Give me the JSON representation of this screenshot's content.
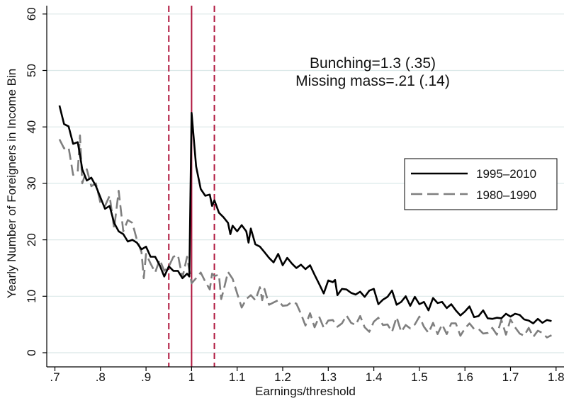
{
  "chart_data": {
    "type": "line",
    "title": "",
    "xlabel": "Earnings/threshold",
    "ylabel": "Yearly Number of Foreigners in Income Bin",
    "xlim": [
      0.7,
      1.8
    ],
    "ylim": [
      0,
      60
    ],
    "x_ticks": [
      0.7,
      0.8,
      0.9,
      1.0,
      1.1,
      1.2,
      1.3,
      1.4,
      1.5,
      1.6,
      1.7,
      1.8
    ],
    "x_tick_labels": [
      ".7",
      ".8",
      ".9",
      "1",
      "1.1",
      "1.2",
      "1.3",
      "1.4",
      "1.5",
      "1.6",
      "1.7",
      "1.8"
    ],
    "y_ticks": [
      0,
      10,
      20,
      30,
      40,
      50,
      60
    ],
    "y_tick_labels": [
      "0",
      "10",
      "20",
      "30",
      "40",
      "50",
      "60"
    ],
    "grid": "horizontal",
    "annotations": [
      "Bunching=1.3 (.35)",
      "Missing mass=.21 (.14)"
    ],
    "vertical_lines": [
      {
        "x": 0.95,
        "style": "dashed",
        "color": "#b0173f"
      },
      {
        "x": 1.0,
        "style": "solid",
        "color": "#b0173f"
      },
      {
        "x": 1.05,
        "style": "dashed",
        "color": "#b0173f"
      }
    ],
    "legend_position": "right",
    "series": [
      {
        "name": "1995–2010",
        "color": "#000000",
        "style": "solid",
        "points": [
          [
            0.71,
            43.8
          ],
          [
            0.72,
            40.5
          ],
          [
            0.73,
            40.1
          ],
          [
            0.74,
            37
          ],
          [
            0.75,
            37.3
          ],
          [
            0.755,
            35
          ],
          [
            0.76,
            32.5
          ],
          [
            0.77,
            30.5
          ],
          [
            0.78,
            31
          ],
          [
            0.79,
            29.5
          ],
          [
            0.8,
            27.5
          ],
          [
            0.81,
            25.5
          ],
          [
            0.82,
            26
          ],
          [
            0.83,
            23
          ],
          [
            0.84,
            21.5
          ],
          [
            0.85,
            21
          ],
          [
            0.86,
            19.7
          ],
          [
            0.87,
            20
          ],
          [
            0.88,
            19.5
          ],
          [
            0.89,
            18.3
          ],
          [
            0.9,
            18.8
          ],
          [
            0.91,
            17
          ],
          [
            0.92,
            17
          ],
          [
            0.93,
            15.5
          ],
          [
            0.94,
            13.5
          ],
          [
            0.95,
            15.3
          ],
          [
            0.96,
            14.5
          ],
          [
            0.97,
            14.5
          ],
          [
            0.98,
            13.2
          ],
          [
            0.99,
            14
          ],
          [
            0.995,
            13.5
          ],
          [
            1.0,
            42.5
          ],
          [
            1.01,
            33
          ],
          [
            1.02,
            29
          ],
          [
            1.03,
            27.8
          ],
          [
            1.04,
            28
          ],
          [
            1.045,
            26
          ],
          [
            1.05,
            27
          ],
          [
            1.06,
            24.8
          ],
          [
            1.07,
            24
          ],
          [
            1.08,
            23
          ],
          [
            1.085,
            21
          ],
          [
            1.09,
            22.5
          ],
          [
            1.1,
            21.5
          ],
          [
            1.11,
            22.6
          ],
          [
            1.12,
            21.5
          ],
          [
            1.125,
            19.5
          ],
          [
            1.13,
            22
          ],
          [
            1.14,
            19.2
          ],
          [
            1.15,
            18.8
          ],
          [
            1.16,
            17.8
          ],
          [
            1.17,
            16.8
          ],
          [
            1.18,
            16
          ],
          [
            1.19,
            17.5
          ],
          [
            1.2,
            15.5
          ],
          [
            1.21,
            16.8
          ],
          [
            1.22,
            15.8
          ],
          [
            1.23,
            15
          ],
          [
            1.24,
            15.6
          ],
          [
            1.25,
            14.8
          ],
          [
            1.26,
            15.5
          ],
          [
            1.27,
            13.8
          ],
          [
            1.28,
            12.2
          ],
          [
            1.29,
            10.5
          ],
          [
            1.3,
            12.8
          ],
          [
            1.31,
            12.5
          ],
          [
            1.315,
            12.9
          ],
          [
            1.32,
            10.2
          ],
          [
            1.33,
            11.3
          ],
          [
            1.34,
            11.2
          ],
          [
            1.35,
            10.6
          ],
          [
            1.36,
            10.3
          ],
          [
            1.37,
            10.8
          ],
          [
            1.38,
            9.9
          ],
          [
            1.39,
            11
          ],
          [
            1.4,
            11.3
          ],
          [
            1.41,
            8.6
          ],
          [
            1.42,
            9.4
          ],
          [
            1.43,
            9.9
          ],
          [
            1.44,
            11
          ],
          [
            1.45,
            8.5
          ],
          [
            1.46,
            9
          ],
          [
            1.47,
            10
          ],
          [
            1.48,
            8.3
          ],
          [
            1.49,
            9.9
          ],
          [
            1.5,
            8.6
          ],
          [
            1.51,
            9
          ],
          [
            1.52,
            7.5
          ],
          [
            1.53,
            9.7
          ],
          [
            1.54,
            8.8
          ],
          [
            1.55,
            9
          ],
          [
            1.56,
            7.9
          ],
          [
            1.57,
            8.6
          ],
          [
            1.58,
            7.5
          ],
          [
            1.59,
            6.6
          ],
          [
            1.6,
            7.3
          ],
          [
            1.61,
            8.2
          ],
          [
            1.62,
            6.3
          ],
          [
            1.63,
            6.5
          ],
          [
            1.64,
            7.5
          ],
          [
            1.65,
            6.1
          ],
          [
            1.66,
            6
          ],
          [
            1.67,
            6.2
          ],
          [
            1.68,
            6.1
          ],
          [
            1.69,
            6.9
          ],
          [
            1.7,
            6.4
          ],
          [
            1.71,
            6.9
          ],
          [
            1.72,
            6.7
          ],
          [
            1.73,
            5.9
          ],
          [
            1.74,
            5.7
          ],
          [
            1.75,
            5.2
          ],
          [
            1.76,
            6
          ],
          [
            1.77,
            5.3
          ],
          [
            1.78,
            5.8
          ],
          [
            1.79,
            5.6
          ]
        ]
      },
      {
        "name": "1980–1990",
        "color": "#7f7f7f",
        "style": "dashed",
        "points": [
          [
            0.71,
            37.8
          ],
          [
            0.72,
            36.2
          ],
          [
            0.73,
            36.4
          ],
          [
            0.74,
            31.5
          ],
          [
            0.75,
            32
          ],
          [
            0.755,
            38.5
          ],
          [
            0.76,
            30
          ],
          [
            0.77,
            32.5
          ],
          [
            0.78,
            29.5
          ],
          [
            0.79,
            30
          ],
          [
            0.8,
            26.5
          ],
          [
            0.81,
            26
          ],
          [
            0.82,
            27.8
          ],
          [
            0.83,
            22
          ],
          [
            0.84,
            28.7
          ],
          [
            0.85,
            21.5
          ],
          [
            0.86,
            23.5
          ],
          [
            0.87,
            23
          ],
          [
            0.88,
            20
          ],
          [
            0.89,
            17.8
          ],
          [
            0.895,
            13.2
          ],
          [
            0.9,
            17.5
          ],
          [
            0.91,
            15.8
          ],
          [
            0.92,
            14.2
          ],
          [
            0.93,
            16.5
          ],
          [
            0.94,
            14.5
          ],
          [
            0.95,
            15.3
          ],
          [
            0.96,
            17
          ],
          [
            0.97,
            17.3
          ],
          [
            0.98,
            13.3
          ],
          [
            0.99,
            17
          ],
          [
            1.0,
            12.3
          ],
          [
            1.01,
            13.2
          ],
          [
            1.02,
            14.2
          ],
          [
            1.03,
            12.6
          ],
          [
            1.04,
            11.2
          ],
          [
            1.045,
            14
          ],
          [
            1.05,
            13.6
          ],
          [
            1.06,
            13.8
          ],
          [
            1.065,
            9.5
          ],
          [
            1.07,
            11
          ],
          [
            1.08,
            14.3
          ],
          [
            1.09,
            13.1
          ],
          [
            1.1,
            10.5
          ],
          [
            1.11,
            8
          ],
          [
            1.12,
            9.5
          ],
          [
            1.13,
            10.2
          ],
          [
            1.14,
            9.3
          ],
          [
            1.15,
            11.6
          ],
          [
            1.155,
            9.3
          ],
          [
            1.16,
            11.3
          ],
          [
            1.17,
            8.5
          ],
          [
            1.18,
            8.9
          ],
          [
            1.19,
            9.3
          ],
          [
            1.2,
            8.3
          ],
          [
            1.21,
            8.4
          ],
          [
            1.22,
            9
          ],
          [
            1.23,
            8.7
          ],
          [
            1.24,
            6.9
          ],
          [
            1.25,
            4.8
          ],
          [
            1.26,
            7
          ],
          [
            1.27,
            4.5
          ],
          [
            1.28,
            6.4
          ],
          [
            1.29,
            4.4
          ],
          [
            1.3,
            5.7
          ],
          [
            1.31,
            5.8
          ],
          [
            1.32,
            4.6
          ],
          [
            1.33,
            5.2
          ],
          [
            1.34,
            6.6
          ],
          [
            1.35,
            5.3
          ],
          [
            1.36,
            4.9
          ],
          [
            1.37,
            6.5
          ],
          [
            1.38,
            4.5
          ],
          [
            1.39,
            3.7
          ],
          [
            1.4,
            5.5
          ],
          [
            1.41,
            6.2
          ],
          [
            1.42,
            4.9
          ],
          [
            1.43,
            5
          ],
          [
            1.44,
            3.7
          ],
          [
            1.45,
            6.3
          ],
          [
            1.46,
            3.7
          ],
          [
            1.47,
            4.9
          ],
          [
            1.48,
            4.3
          ],
          [
            1.49,
            5
          ],
          [
            1.5,
            6.4
          ],
          [
            1.51,
            4.6
          ],
          [
            1.52,
            3.5
          ],
          [
            1.53,
            5.3
          ],
          [
            1.54,
            3.3
          ],
          [
            1.55,
            5
          ],
          [
            1.56,
            3.3
          ],
          [
            1.57,
            5.2
          ],
          [
            1.58,
            5.2
          ],
          [
            1.59,
            3
          ],
          [
            1.6,
            4.3
          ],
          [
            1.61,
            5.2
          ],
          [
            1.62,
            4.2
          ],
          [
            1.63,
            4.2
          ],
          [
            1.64,
            3.4
          ],
          [
            1.65,
            3.5
          ],
          [
            1.66,
            4.4
          ],
          [
            1.67,
            3.2
          ],
          [
            1.68,
            5.8
          ],
          [
            1.69,
            3.2
          ],
          [
            1.7,
            5.9
          ],
          [
            1.71,
            4.5
          ],
          [
            1.72,
            3.4
          ],
          [
            1.73,
            3
          ],
          [
            1.74,
            4.4
          ],
          [
            1.75,
            2.8
          ],
          [
            1.76,
            3.9
          ],
          [
            1.77,
            3.5
          ],
          [
            1.78,
            2.7
          ],
          [
            1.79,
            3.1
          ]
        ]
      }
    ]
  }
}
